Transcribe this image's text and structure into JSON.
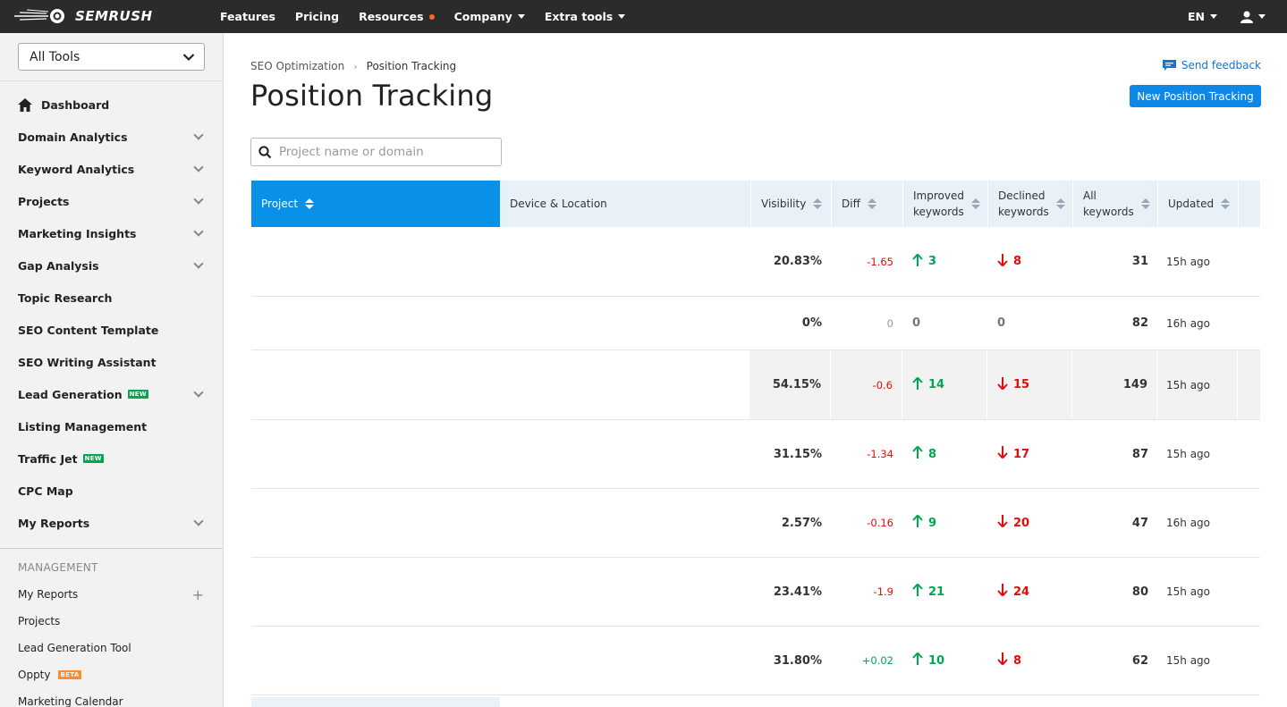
{
  "brand": {
    "name": "SEMRUSH"
  },
  "topnav": {
    "items": [
      {
        "label": "Features",
        "caret": false,
        "dot": false
      },
      {
        "label": "Pricing",
        "caret": false,
        "dot": false
      },
      {
        "label": "Resources",
        "caret": false,
        "dot": true
      },
      {
        "label": "Company",
        "caret": true,
        "dot": false
      },
      {
        "label": "Extra tools",
        "caret": true,
        "dot": false
      }
    ],
    "language": "EN"
  },
  "sidebar": {
    "tools_select": "All Tools",
    "items": [
      {
        "label": "Dashboard",
        "icon": "home-icon",
        "expandable": false,
        "badge": ""
      },
      {
        "label": "Domain Analytics",
        "expandable": true,
        "badge": ""
      },
      {
        "label": "Keyword Analytics",
        "expandable": true,
        "badge": ""
      },
      {
        "label": "Projects",
        "expandable": true,
        "badge": ""
      },
      {
        "label": "Marketing Insights",
        "expandable": true,
        "badge": ""
      },
      {
        "label": "Gap Analysis",
        "expandable": true,
        "badge": ""
      },
      {
        "label": "Topic Research",
        "expandable": false,
        "badge": ""
      },
      {
        "label": "SEO Content Template",
        "expandable": false,
        "badge": ""
      },
      {
        "label": "SEO Writing Assistant",
        "expandable": false,
        "badge": ""
      },
      {
        "label": "Lead Generation",
        "expandable": true,
        "badge": "NEW"
      },
      {
        "label": "Listing Management",
        "expandable": false,
        "badge": ""
      },
      {
        "label": "Traffic Jet",
        "expandable": false,
        "badge": "NEW"
      },
      {
        "label": "CPC Map",
        "expandable": false,
        "badge": ""
      },
      {
        "label": "My Reports",
        "expandable": true,
        "badge": ""
      }
    ],
    "management": {
      "title": "MANAGEMENT",
      "items": [
        {
          "label": "My Reports",
          "plus": true,
          "badge": ""
        },
        {
          "label": "Projects",
          "plus": false,
          "badge": ""
        },
        {
          "label": "Lead Generation Tool",
          "plus": false,
          "badge": ""
        },
        {
          "label": "Oppty",
          "plus": false,
          "badge": "BETA"
        },
        {
          "label": "Marketing Calendar",
          "plus": false,
          "badge": ""
        }
      ]
    }
  },
  "breadcrumb": {
    "parent": "SEO Optimization",
    "current": "Position Tracking"
  },
  "page": {
    "title": "Position Tracking",
    "feedback": "Send feedback",
    "new_button": "New Position Tracking",
    "search_placeholder": "Project name or domain",
    "search_value": ""
  },
  "table": {
    "headers": {
      "project": "Project",
      "device": "Device & Location",
      "visibility": "Visibility",
      "diff": "Diff",
      "improved": [
        "Improved",
        "keywords"
      ],
      "declined": [
        "Declined",
        "keywords"
      ],
      "all": [
        "All",
        "keywords"
      ],
      "updated": "Updated"
    },
    "rows": [
      {
        "visibility": "20.83%",
        "diff": "-1.65",
        "improved": "3",
        "declined": "8",
        "all": "31",
        "updated": "15h ago"
      },
      {
        "visibility": "0%",
        "diff": "0",
        "improved": "0",
        "declined": "0",
        "all": "82",
        "updated": "16h ago"
      },
      {
        "visibility": "54.15%",
        "diff": "-0.6",
        "improved": "14",
        "declined": "15",
        "all": "149",
        "updated": "15h ago"
      },
      {
        "visibility": "31.15%",
        "diff": "-1.34",
        "improved": "8",
        "declined": "17",
        "all": "87",
        "updated": "15h ago"
      },
      {
        "visibility": "2.57%",
        "diff": "-0.16",
        "improved": "9",
        "declined": "20",
        "all": "47",
        "updated": "16h ago"
      },
      {
        "visibility": "23.41%",
        "diff": "-1.9",
        "improved": "21",
        "declined": "24",
        "all": "80",
        "updated": "15h ago"
      },
      {
        "visibility": "31.80%",
        "diff": "+0.02",
        "improved": "10",
        "declined": "8",
        "all": "62",
        "updated": "15h ago"
      }
    ]
  },
  "colors": {
    "accent": "#0891e6",
    "button": "#0e87e6",
    "up": "#00a651",
    "down": "#e20c0c",
    "topbar": "#2b2b2b"
  }
}
